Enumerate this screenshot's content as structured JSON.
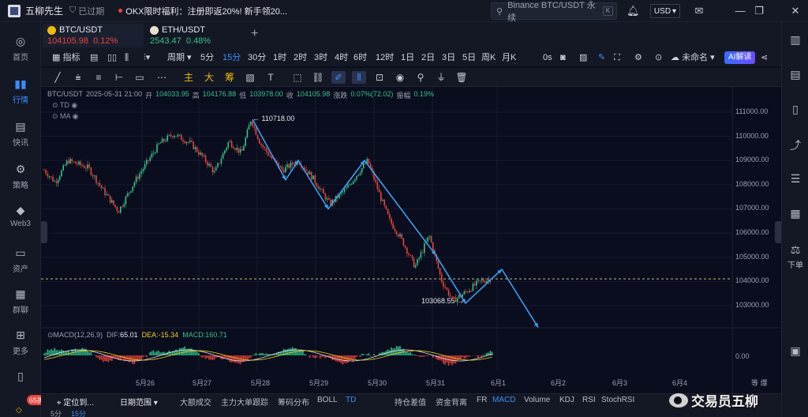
{
  "titlebar": {
    "app_name": "五柳先生",
    "status": "已过期",
    "promo": "OKX限时福利：注册即返20%! 新手领20...",
    "search_placeholder": "Binance BTC/USDT 永续",
    "search_shortcut": "K",
    "currency": "USD"
  },
  "left_sidebar": {
    "items": [
      {
        "label": "首页",
        "icon": "home-icon"
      },
      {
        "label": "行情",
        "icon": "chart-bar-icon",
        "active": true
      },
      {
        "label": "快讯",
        "icon": "news-icon"
      },
      {
        "label": "策略",
        "icon": "robot-icon"
      },
      {
        "label": "Web3",
        "icon": "web3-icon"
      },
      {
        "label": "资产",
        "icon": "wallet-icon"
      },
      {
        "label": "群聊",
        "icon": "chat-icon"
      },
      {
        "label": "更多",
        "icon": "grid-icon"
      }
    ],
    "badge": "65折"
  },
  "right_sidebar": {
    "order_label": "下单"
  },
  "tabs": [
    {
      "name": "BTC/USDT",
      "price": "104105.98",
      "change": "0.12%",
      "active": true
    },
    {
      "name": "ETH/USDT",
      "price": "2543.47",
      "change": "0.48%",
      "active": false
    }
  ],
  "toolbar1": {
    "indicator_label": "指标",
    "period_label": "周期",
    "intervals": [
      "5分",
      "15分",
      "30分",
      "1时",
      "2时",
      "3时",
      "4时",
      "6时",
      "12时",
      "1日",
      "2日",
      "3日",
      "5日",
      "周K",
      "月K"
    ],
    "active_interval": "15分",
    "seconds": "0s",
    "unnamed": "未命名",
    "ai_label": "AI解读"
  },
  "toolbar2": {
    "labels": [
      "主",
      "大",
      "筹"
    ]
  },
  "chart": {
    "info": {
      "symbol": "BTC/USDT",
      "datetime": "2025-05-31 21:00",
      "open_label": "开",
      "open": "104033.95",
      "high_label": "高",
      "high": "104176.88",
      "low_label": "低",
      "low": "103978.00",
      "close_label": "收",
      "close": "104105.98",
      "change_label": "涨跌",
      "change": "0.07%(72.02)",
      "amp_label": "振幅",
      "amp": "0.19%"
    },
    "overlay_indicators": [
      "TD",
      "MA"
    ],
    "price_axis": [
      "111000.00",
      "110000.00",
      "109000.00",
      "108000.00",
      "107000.00",
      "106000.00",
      "105000.00",
      "104000.00",
      "103000.00"
    ],
    "macd_axis": "0.00",
    "date_axis": [
      "5月26",
      "5月27",
      "5月28",
      "5月29",
      "5月30",
      "5月31",
      "6月1",
      "6月2",
      "6月3",
      "6月4"
    ],
    "axis_corner": "等 爆",
    "high_annotation": "110718.00",
    "low_annotation": "103068.55",
    "macd": {
      "name": "MACD(12,26,9)",
      "dif_label": "DIF:",
      "dif": "65.01",
      "dea_label": "DEA:",
      "dea": "-15.34",
      "macd_label": "MACD:",
      "macd_val": "160.71"
    }
  },
  "bottombar": {
    "locate": "定位到...",
    "range": "日期范围",
    "items": [
      "大额成交",
      "主力大单跟踪",
      "筹码分布",
      "BOLL",
      "TD",
      "持仓差值",
      "资金背离",
      "FR",
      "MACD",
      "Volume",
      "KDJ",
      "RSI",
      "StochRSI"
    ],
    "active": [
      "TD",
      "MACD"
    ]
  },
  "watermark": "交易员五柳",
  "colors": {
    "up": "#35c28a",
    "down": "#e8443a",
    "accent": "#3a8dff",
    "wave": "#3a9ff0"
  }
}
